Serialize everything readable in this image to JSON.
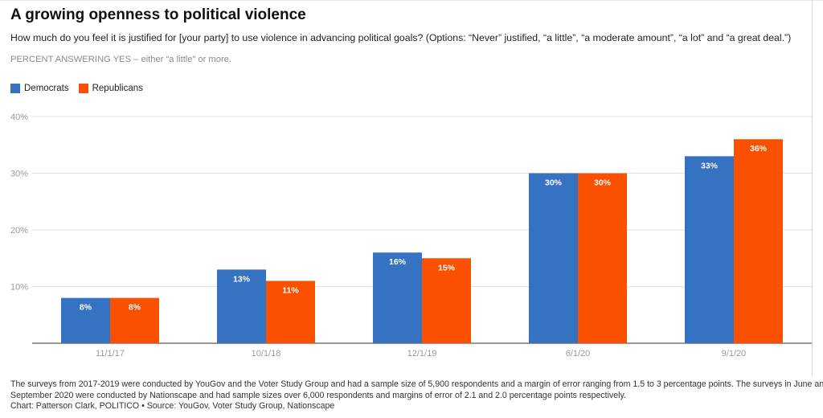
{
  "header": {
    "title": "A growing openness to political violence",
    "subtitle": "How much do you feel it is justified for [your party] to use violence in advancing political goals? (Options: “Never” justified, “a little”, “a moderate amount”, “a lot” and “a great deal.”)",
    "note": "PERCENT ANSWERING YES – either “a little” or more."
  },
  "chart_data": {
    "type": "bar",
    "categories": [
      "11/1/17",
      "10/1/18",
      "12/1/19",
      "6/1/20",
      "9/1/20"
    ],
    "series": [
      {
        "name": "Democrats",
        "color": "#3672c2",
        "values": [
          8,
          13,
          16,
          30,
          33
        ],
        "labels": [
          "8%",
          "13%",
          "16%",
          "30%",
          "33%"
        ]
      },
      {
        "name": "Republicans",
        "color": "#fa5000",
        "values": [
          8,
          11,
          15,
          30,
          36
        ],
        "labels": [
          "8%",
          "11%",
          "15%",
          "30%",
          "36%"
        ]
      }
    ],
    "ylim": [
      0,
      40
    ],
    "yticks": [
      10,
      20,
      30,
      40
    ],
    "ytick_labels": [
      "10%",
      "20%",
      "30%",
      "40%"
    ],
    "grid": true,
    "legend": "top-left"
  },
  "footer": {
    "line1": "The surveys from 2017-2019 were conducted by YouGov and the Voter Study Group and had a sample size of 5,900 respondents and a margin of error ranging from 1.5 to 3 percentage points. The surveys in June and",
    "line2": "September 2020 were conducted by Nationscape and had sample sizes over 6,000 respondents and margins of error of 2.1 and 2.0 percentage points respectively.",
    "credit": "Chart: Patterson Clark, POLITICO • Source: YouGov, Voter Study Group, Nationscape"
  }
}
